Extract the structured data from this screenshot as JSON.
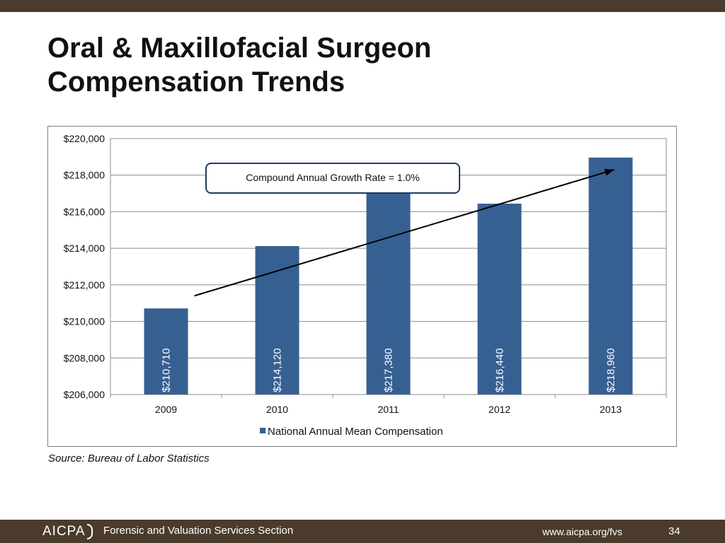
{
  "slide": {
    "title_line1": "Oral & Maxillofacial Surgeon",
    "title_line2": "Compensation Trends",
    "source": "Source:  Bureau of Labor Statistics"
  },
  "footer": {
    "logo_text": "AICPA",
    "section": "Forensic and Valuation Services Section",
    "url": "www.aicpa.org/fvs",
    "page_number": "34"
  },
  "colors": {
    "band": "#4a3b2c",
    "bar": "#376092",
    "callout_border": "#1f3b63"
  },
  "chart_data": {
    "type": "bar",
    "categories": [
      "2009",
      "2010",
      "2011",
      "2012",
      "2013"
    ],
    "series": [
      {
        "name": "National Annual Mean Compensation",
        "values": [
          210710,
          214120,
          217380,
          216440,
          218960
        ]
      }
    ],
    "data_labels": [
      "$210,710",
      "$214,120",
      "$217,380",
      "$216,440",
      "$218,960"
    ],
    "y_tick_values": [
      206000,
      208000,
      210000,
      212000,
      214000,
      216000,
      218000,
      220000
    ],
    "y_tick_labels": [
      "$206,000",
      "$208,000",
      "$210,000",
      "$212,000",
      "$214,000",
      "$216,000",
      "$218,000",
      "$220,000"
    ],
    "ylim": [
      206000,
      220000
    ],
    "grid": true,
    "legend_position": "bottom",
    "annotation": "Compound Annual Growth Rate = 1.0%",
    "trend_arrow": {
      "from": {
        "x": "2009",
        "y": 211400
      },
      "to": {
        "x": "2013",
        "y": 218300
      }
    }
  }
}
